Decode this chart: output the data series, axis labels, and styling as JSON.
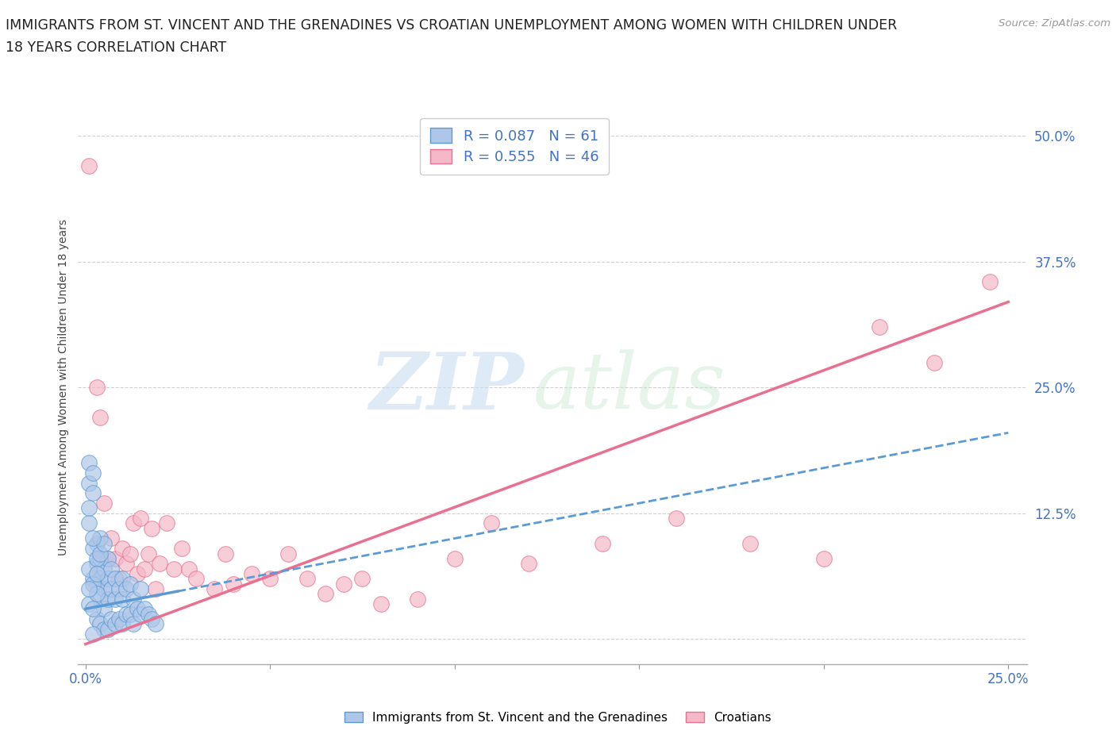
{
  "title_line1": "IMMIGRANTS FROM ST. VINCENT AND THE GRENADINES VS CROATIAN UNEMPLOYMENT AMONG WOMEN WITH CHILDREN UNDER",
  "title_line2": "18 YEARS CORRELATION CHART",
  "source_text": "Source: ZipAtlas.com",
  "ylabel": "Unemployment Among Women with Children Under 18 years",
  "xlim": [
    -0.002,
    0.255
  ],
  "ylim": [
    -0.025,
    0.525
  ],
  "x_ticks": [
    0.0,
    0.05,
    0.1,
    0.15,
    0.2,
    0.25
  ],
  "y_ticks": [
    0.0,
    0.125,
    0.25,
    0.375,
    0.5
  ],
  "y_tick_labels": [
    "",
    "12.5%",
    "25.0%",
    "37.5%",
    "50.0%"
  ],
  "blue_R": 0.087,
  "blue_N": 61,
  "pink_R": 0.555,
  "pink_N": 46,
  "blue_color": "#aec6e8",
  "pink_color": "#f5b8c8",
  "blue_edge_color": "#5b9bd5",
  "pink_edge_color": "#e87090",
  "blue_line_color": "#5b9bd5",
  "pink_line_color": "#e87090",
  "legend_label_blue": "Immigrants from St. Vincent and the Grenadines",
  "legend_label_pink": "Croatians",
  "watermark_zip": "ZIP",
  "watermark_atlas": "atlas",
  "background_color": "#ffffff",
  "grid_color": "#d0d0d0",
  "blue_scatter_x": [
    0.001,
    0.001,
    0.002,
    0.002,
    0.002,
    0.003,
    0.003,
    0.003,
    0.003,
    0.004,
    0.004,
    0.004,
    0.004,
    0.005,
    0.005,
    0.005,
    0.005,
    0.006,
    0.006,
    0.006,
    0.006,
    0.007,
    0.007,
    0.007,
    0.008,
    0.008,
    0.008,
    0.009,
    0.009,
    0.01,
    0.01,
    0.01,
    0.011,
    0.011,
    0.012,
    0.012,
    0.013,
    0.013,
    0.014,
    0.015,
    0.015,
    0.016,
    0.017,
    0.018,
    0.019,
    0.001,
    0.002,
    0.001,
    0.002,
    0.003,
    0.002,
    0.003,
    0.003,
    0.004,
    0.004,
    0.005,
    0.001,
    0.002,
    0.001,
    0.001,
    0.002
  ],
  "blue_scatter_y": [
    0.175,
    0.155,
    0.165,
    0.145,
    0.06,
    0.095,
    0.075,
    0.055,
    0.02,
    0.08,
    0.06,
    0.04,
    0.015,
    0.07,
    0.05,
    0.03,
    0.01,
    0.08,
    0.06,
    0.04,
    0.01,
    0.07,
    0.05,
    0.02,
    0.06,
    0.04,
    0.015,
    0.05,
    0.02,
    0.06,
    0.04,
    0.015,
    0.05,
    0.025,
    0.055,
    0.025,
    0.04,
    0.015,
    0.03,
    0.05,
    0.025,
    0.03,
    0.025,
    0.02,
    0.015,
    0.035,
    0.03,
    0.07,
    0.055,
    0.045,
    0.09,
    0.08,
    0.065,
    0.1,
    0.085,
    0.095,
    0.115,
    0.1,
    0.13,
    0.05,
    0.005
  ],
  "pink_scatter_x": [
    0.001,
    0.003,
    0.004,
    0.005,
    0.006,
    0.007,
    0.008,
    0.009,
    0.01,
    0.011,
    0.012,
    0.013,
    0.014,
    0.015,
    0.016,
    0.017,
    0.018,
    0.019,
    0.02,
    0.022,
    0.024,
    0.026,
    0.028,
    0.03,
    0.035,
    0.038,
    0.04,
    0.045,
    0.05,
    0.055,
    0.06,
    0.065,
    0.07,
    0.075,
    0.08,
    0.09,
    0.1,
    0.11,
    0.12,
    0.14,
    0.16,
    0.18,
    0.2,
    0.215,
    0.23,
    0.245
  ],
  "pink_scatter_y": [
    0.47,
    0.25,
    0.22,
    0.135,
    0.08,
    0.1,
    0.08,
    0.06,
    0.09,
    0.075,
    0.085,
    0.115,
    0.065,
    0.12,
    0.07,
    0.085,
    0.11,
    0.05,
    0.075,
    0.115,
    0.07,
    0.09,
    0.07,
    0.06,
    0.05,
    0.085,
    0.055,
    0.065,
    0.06,
    0.085,
    0.06,
    0.045,
    0.055,
    0.06,
    0.035,
    0.04,
    0.08,
    0.115,
    0.075,
    0.095,
    0.12,
    0.095,
    0.08,
    0.31,
    0.275,
    0.355
  ],
  "pink_trendline_x0": 0.0,
  "pink_trendline_y0": -0.005,
  "pink_trendline_x1": 0.25,
  "pink_trendline_y1": 0.335,
  "blue_trendline_x0": 0.0,
  "blue_trendline_y0": 0.03,
  "blue_trendline_x1": 0.25,
  "blue_trendline_y1": 0.205
}
